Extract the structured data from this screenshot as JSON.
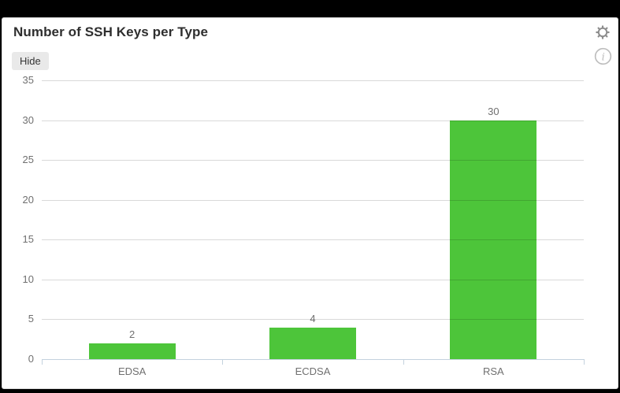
{
  "panel": {
    "title": "Number of SSH Keys per Type",
    "hide_button_label": "Hide"
  },
  "icons": {
    "gear": "gear-icon",
    "info": "info-circle-icon"
  },
  "colors": {
    "page_background": "#000000",
    "panel_background": "#ffffff",
    "panel_border": "#d9d9d9",
    "title_text": "#2e2e2e",
    "hide_button_background": "#e9e9e9",
    "hide_button_text": "#333333",
    "bar": "#4dc53a",
    "gridline": "rgba(0,0,0,0.15)",
    "axis_line": "#c4d2de",
    "axis_text": "#707070",
    "icon_gear": "#8d8d8d",
    "icon_info": "#bdbdbd"
  },
  "chart_data": {
    "type": "bar",
    "title": "Number of SSH Keys per Type",
    "categories": [
      "EDSA",
      "ECDSA",
      "RSA"
    ],
    "values": [
      2,
      4,
      30
    ],
    "value_labels": [
      "2",
      "4",
      "30"
    ],
    "xlabel": "",
    "ylabel": "",
    "ylim": [
      0,
      35
    ],
    "yticks": [
      0,
      5,
      10,
      15,
      20,
      25,
      30,
      35
    ],
    "grid": true,
    "gridlines_over_bars": true,
    "legend": false,
    "bar_color": "#4dc53a"
  }
}
